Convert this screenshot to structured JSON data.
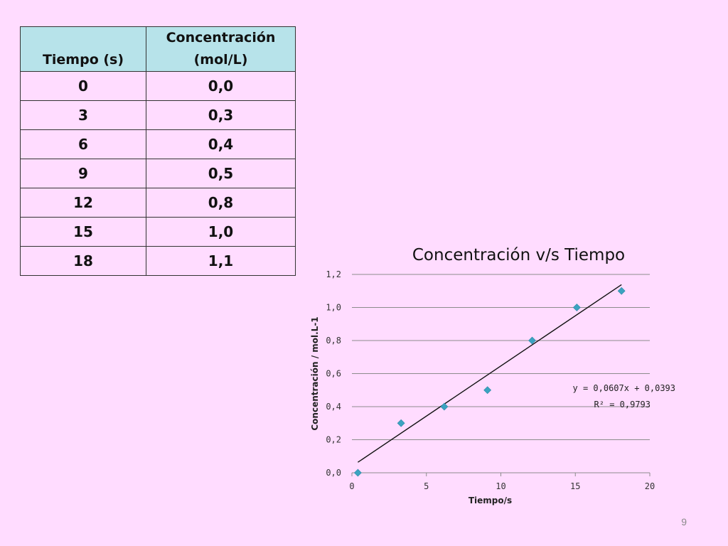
{
  "table": {
    "headers": [
      "Tiempo (s)",
      "Concentración\n(mol/L)"
    ],
    "rows": [
      [
        "0",
        "0,0"
      ],
      [
        "3",
        "0,3"
      ],
      [
        "6",
        "0,4"
      ],
      [
        "9",
        "0,5"
      ],
      [
        "12",
        "0,8"
      ],
      [
        "15",
        "1,0"
      ],
      [
        "18",
        "1,1"
      ]
    ]
  },
  "chart_data": {
    "type": "scatter",
    "title": "Concentración v/s Tiempo",
    "xlabel": "Tiempo/s",
    "ylabel": "Concentración / mol.L-1",
    "xlim": [
      0,
      20
    ],
    "ylim": [
      0,
      1.2
    ],
    "x_ticks": [
      "0",
      "5",
      "10",
      "15",
      "20"
    ],
    "y_ticks": [
      "0,0",
      "0,2",
      "0,4",
      "0,6",
      "0,8",
      "1,0",
      "1,2"
    ],
    "grid": "horizontal",
    "series": [
      {
        "points": [
          {
            "x": 0.4,
            "y": 0.0
          },
          {
            "x": 3.3,
            "y": 0.3
          },
          {
            "x": 6.2,
            "y": 0.4
          },
          {
            "x": 9.1,
            "y": 0.5
          },
          {
            "x": 12.1,
            "y": 0.8
          },
          {
            "x": 15.1,
            "y": 1.0
          },
          {
            "x": 18.1,
            "y": 1.1
          }
        ],
        "color": "#3ba3c1"
      }
    ],
    "trendline": {
      "slope": 0.0607,
      "intercept": 0.0393,
      "x_range": [
        0.4,
        18.1
      ],
      "equation_label": "y = 0,0607x + 0,0393",
      "r2_label": "R² = 0,9793"
    }
  },
  "page_number": "9"
}
